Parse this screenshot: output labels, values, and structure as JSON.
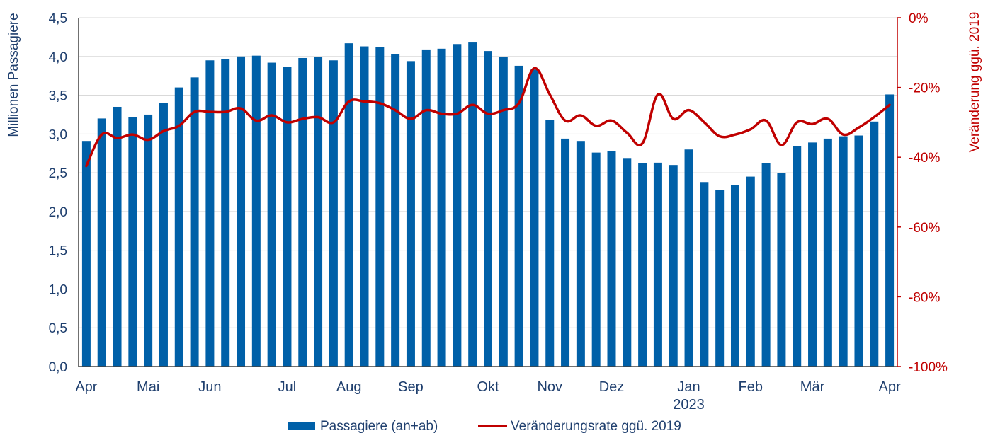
{
  "chart_data": {
    "type": "bar",
    "ylabel": "Millionen Passagiere",
    "y2label": "Veränderung ggü. 2019",
    "ylim": [
      0,
      4.5
    ],
    "y2lim": [
      -100,
      0
    ],
    "yticks": [
      "0,0",
      "0,5",
      "1,0",
      "1,5",
      "2,0",
      "2,5",
      "3,0",
      "3,5",
      "4,0",
      "4,5"
    ],
    "y2ticks": [
      "-100%",
      "-80%",
      "-60%",
      "-40%",
      "-20%",
      "0%"
    ],
    "x_labels": [
      {
        "label": "Apr",
        "index": 0
      },
      {
        "label": "Mai",
        "index": 4
      },
      {
        "label": "Jun",
        "index": 8
      },
      {
        "label": "Jul",
        "index": 13
      },
      {
        "label": "Aug",
        "index": 17
      },
      {
        "label": "Sep",
        "index": 21
      },
      {
        "label": "Okt",
        "index": 26
      },
      {
        "label": "Nov",
        "index": 30
      },
      {
        "label": "Dez",
        "index": 34
      },
      {
        "label": "Jan",
        "index": 39
      },
      {
        "label": "Feb",
        "index": 43
      },
      {
        "label": "Mär",
        "index": 47
      },
      {
        "label": "Apr",
        "index": 52
      }
    ],
    "year_label": {
      "label": "2023",
      "index": 39
    },
    "legend": [
      "Passagiere (an+ab)",
      "Veränderungsrate ggü. 2019"
    ],
    "series": [
      {
        "name": "Passagiere (an+ab)",
        "type": "bar",
        "axis": "left",
        "color": "#0060a8",
        "values": [
          2.91,
          3.2,
          3.35,
          3.22,
          3.25,
          3.4,
          3.6,
          3.73,
          3.95,
          3.97,
          4.0,
          4.01,
          3.92,
          3.87,
          3.98,
          3.99,
          3.95,
          4.17,
          4.13,
          4.12,
          4.03,
          3.94,
          4.09,
          4.1,
          4.16,
          4.18,
          4.07,
          3.99,
          3.88,
          3.83,
          3.18,
          2.94,
          2.91,
          2.76,
          2.78,
          2.69,
          2.62,
          2.63,
          2.6,
          2.8,
          2.38,
          2.28,
          2.34,
          2.45,
          2.62,
          2.5,
          2.84,
          2.89,
          2.94,
          2.97,
          2.98,
          3.16,
          3.51
        ]
      },
      {
        "name": "Veränderungsrate ggü. 2019",
        "type": "line",
        "axis": "right",
        "color": "#c00000",
        "values": [
          -42.5,
          -33.5,
          -34.5,
          -33.5,
          -35.0,
          -32.5,
          -31.0,
          -27.0,
          -27.0,
          -27.0,
          -26.0,
          -29.5,
          -28.0,
          -30.0,
          -29.0,
          -28.5,
          -30.0,
          -24.0,
          -24.0,
          -24.5,
          -26.5,
          -29.0,
          -26.5,
          -27.5,
          -27.5,
          -25.0,
          -27.5,
          -26.5,
          -24.5,
          -14.5,
          -22.0,
          -29.5,
          -28.0,
          -31.0,
          -29.5,
          -33.0,
          -36.0,
          -22.0,
          -29.0,
          -26.5,
          -30.0,
          -34.0,
          -33.5,
          -32.0,
          -29.5,
          -36.5,
          -30.0,
          -30.5,
          -29.0,
          -33.5,
          -31.5,
          -28.5,
          -25.0
        ]
      }
    ]
  }
}
